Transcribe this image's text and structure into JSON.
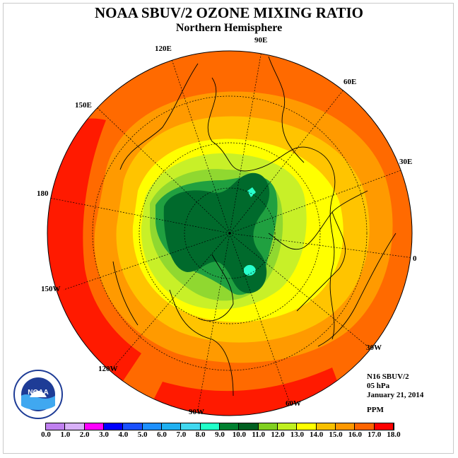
{
  "title": "NOAA SBUV/2 OZONE MIXING RATIO",
  "subtitle": "Northern Hemisphere",
  "longitudes": [
    {
      "id": "lon-120e",
      "text": "120E"
    },
    {
      "id": "lon-90e",
      "text": "90E"
    },
    {
      "id": "lon-60e",
      "text": "60E"
    },
    {
      "id": "lon-150e",
      "text": "150E"
    },
    {
      "id": "lon-30e",
      "text": "30E"
    },
    {
      "id": "lon-180",
      "text": "180"
    },
    {
      "id": "lon-0",
      "text": "0"
    },
    {
      "id": "lon-150w",
      "text": "150W"
    },
    {
      "id": "lon-30w",
      "text": "30W"
    },
    {
      "id": "lon-120w",
      "text": "120W"
    },
    {
      "id": "lon-60w",
      "text": "60W"
    },
    {
      "id": "lon-90w",
      "text": "90W"
    }
  ],
  "info": {
    "instrument": "N16 SBUV/2",
    "level": "05 hPa",
    "date": "January 21, 2014",
    "units": "PPM"
  },
  "logo": {
    "text": "NOAA"
  },
  "colorbar": {
    "ticks": [
      "0.0",
      "1.0",
      "2.0",
      "3.0",
      "4.0",
      "5.0",
      "6.0",
      "7.0",
      "8.0",
      "9.0",
      "10.0",
      "11.0",
      "12.0",
      "13.0",
      "14.0",
      "15.0",
      "16.0",
      "17.0",
      "18.0"
    ],
    "colors": [
      "#c080f0",
      "#d8b0f8",
      "#ff00ff",
      "#0000ff",
      "#1a50ff",
      "#1e90ff",
      "#20b0f0",
      "#40d8f0",
      "#20ffc8",
      "#008030",
      "#006020",
      "#80d020",
      "#c0f020",
      "#ffff00",
      "#f8c000",
      "#ff9800",
      "#ff6400",
      "#ff0000",
      "#906040"
    ]
  },
  "map_colors": {
    "red": "#ff1a00",
    "orange_red": "#ff6a00",
    "orange": "#ff9a00",
    "gold": "#ffc400",
    "yellow": "#ffff00",
    "yellow_green": "#c8f028",
    "light_green": "#90d830",
    "green": "#20a040",
    "dark_green": "#006a2c",
    "cyan": "#28ffcc"
  }
}
